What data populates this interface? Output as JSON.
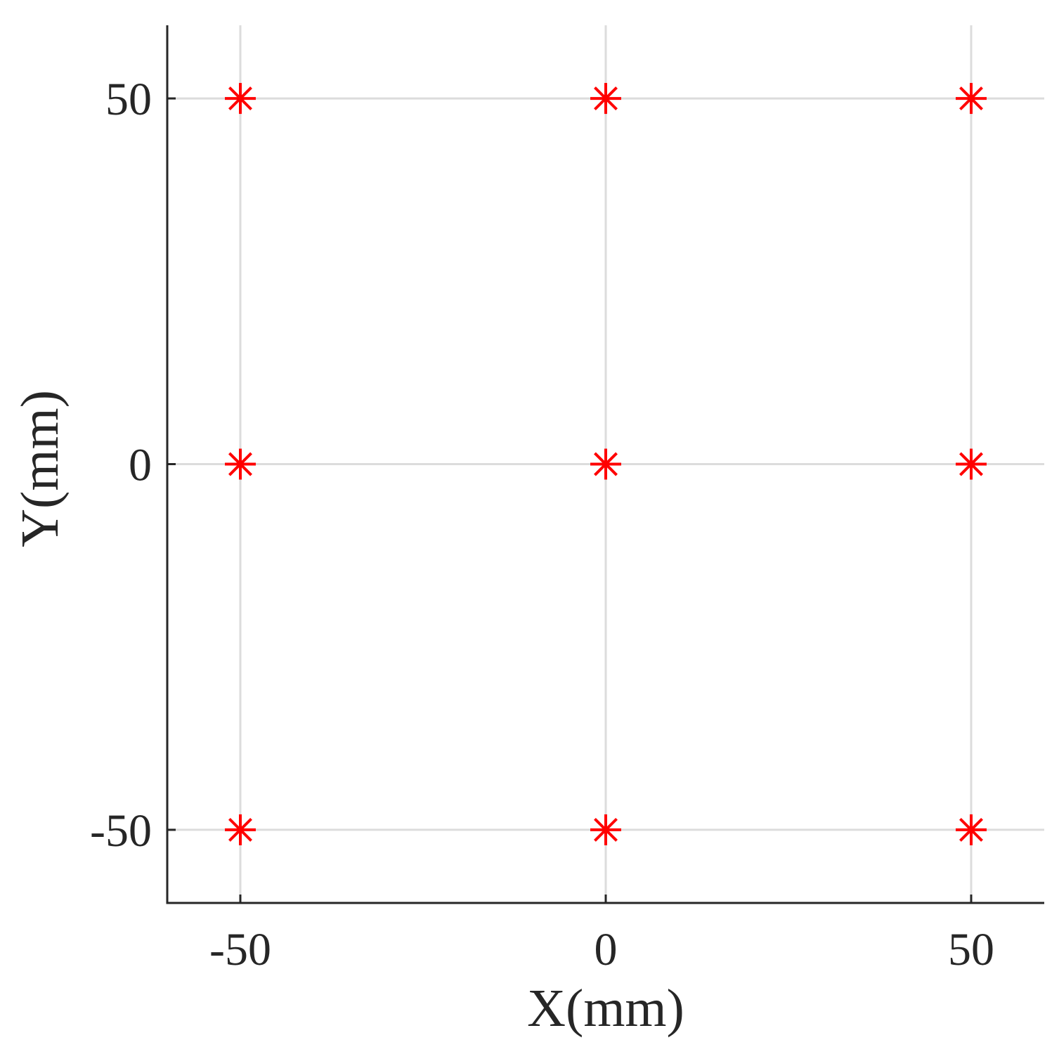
{
  "chart_data": {
    "type": "scatter",
    "title": "",
    "xlabel": "X(mm)",
    "ylabel": "Y(mm)",
    "xlim": [
      -60,
      60
    ],
    "ylim": [
      -60,
      60
    ],
    "xticks": [
      -50,
      0,
      50
    ],
    "yticks": [
      -50,
      0,
      50
    ],
    "xtick_labels": [
      "-50",
      "0",
      "50"
    ],
    "ytick_labels": [
      "-50",
      "0",
      "50"
    ],
    "grid": true,
    "marker": "asterisk",
    "color": "#ff0000",
    "series": [
      {
        "points": [
          {
            "x": -50,
            "y": 50
          },
          {
            "x": 0,
            "y": 50
          },
          {
            "x": 50,
            "y": 50
          },
          {
            "x": -50,
            "y": 0
          },
          {
            "x": 0,
            "y": 0
          },
          {
            "x": 50,
            "y": 0
          },
          {
            "x": -50,
            "y": -50
          },
          {
            "x": 0,
            "y": -50
          },
          {
            "x": 50,
            "y": -50
          }
        ]
      }
    ]
  }
}
